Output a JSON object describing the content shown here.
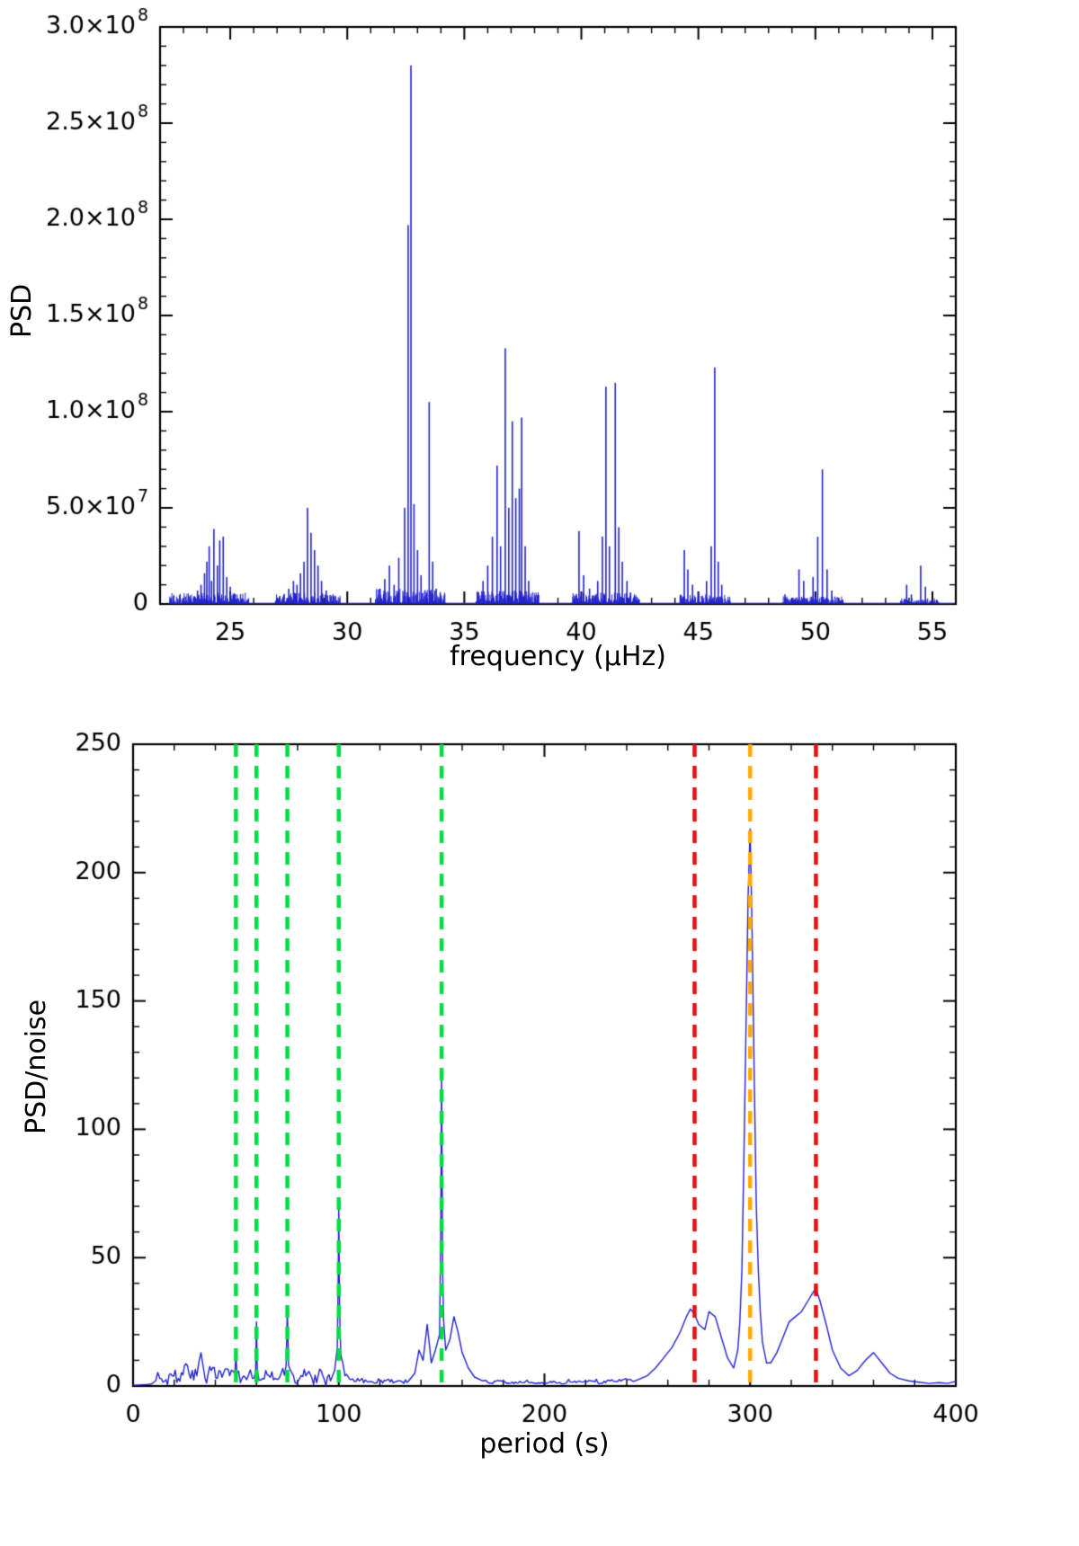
{
  "figure": {
    "background": "#ffffff"
  },
  "chart_data": [
    {
      "id": "psd_vs_frequency",
      "type": "line",
      "title": "",
      "xlabel": "frequency (μHz)",
      "ylabel": "PSD",
      "xlim": [
        22,
        56
      ],
      "ylim": [
        0,
        300000000.0
      ],
      "grid": false,
      "legend": "none",
      "line_color": "#2222cc",
      "xticks": {
        "major": [
          25,
          30,
          35,
          40,
          45,
          50,
          55
        ],
        "labels": [
          "25",
          "30",
          "35",
          "40",
          "45",
          "50",
          "55"
        ],
        "minor_step": 1
      },
      "yticks": {
        "major": [
          0,
          50000000.0,
          100000000.0,
          150000000.0,
          200000000.0,
          250000000.0,
          300000000.0
        ],
        "labels": [
          "0",
          "5.0×10^7",
          "1.0×10^8",
          "1.5×10^8",
          "2.0×10^8",
          "2.5×10^8",
          "3.0×10^8"
        ],
        "minor_step": 10000000.0
      },
      "data_range": [
        22.35,
        55.9
      ],
      "peaks": [
        [
          23.45,
          4000000.0
        ],
        [
          23.6,
          7000000.0
        ],
        [
          23.75,
          10000000.0
        ],
        [
          23.9,
          16000000.0
        ],
        [
          24.0,
          22000000.0
        ],
        [
          24.1,
          30000000.0
        ],
        [
          24.2,
          12000000.0
        ],
        [
          24.3,
          39000000.0
        ],
        [
          24.45,
          20000000.0
        ],
        [
          24.55,
          33000000.0
        ],
        [
          24.7,
          35000000.0
        ],
        [
          24.85,
          14000000.0
        ],
        [
          25.0,
          9000000.0
        ],
        [
          25.2,
          5000000.0
        ],
        [
          25.45,
          3000000.0
        ],
        [
          27.1,
          3000000.0
        ],
        [
          27.3,
          5000000.0
        ],
        [
          27.5,
          8000000.0
        ],
        [
          27.7,
          12000000.0
        ],
        [
          27.85,
          10000000.0
        ],
        [
          28.0,
          16000000.0
        ],
        [
          28.15,
          22000000.0
        ],
        [
          28.3,
          50000000.0
        ],
        [
          28.45,
          37000000.0
        ],
        [
          28.6,
          28000000.0
        ],
        [
          28.75,
          20000000.0
        ],
        [
          28.9,
          12000000.0
        ],
        [
          29.1,
          7000000.0
        ],
        [
          29.3,
          4000000.0
        ],
        [
          31.4,
          8000000.0
        ],
        [
          31.6,
          13000000.0
        ],
        [
          31.8,
          20000000.0
        ],
        [
          32.0,
          10000000.0
        ],
        [
          32.2,
          24000000.0
        ],
        [
          32.45,
          50000000.0
        ],
        [
          32.6,
          197000000.0
        ],
        [
          32.72,
          280000000.0
        ],
        [
          32.85,
          52000000.0
        ],
        [
          33.0,
          28000000.0
        ],
        [
          33.15,
          15000000.0
        ],
        [
          33.5,
          105000000.0
        ],
        [
          33.65,
          22000000.0
        ],
        [
          33.8,
          8000000.0
        ],
        [
          35.6,
          6000000.0
        ],
        [
          35.8,
          12000000.0
        ],
        [
          36.0,
          20000000.0
        ],
        [
          36.2,
          35000000.0
        ],
        [
          36.4,
          72000000.0
        ],
        [
          36.55,
          30000000.0
        ],
        [
          36.75,
          133000000.0
        ],
        [
          36.9,
          50000000.0
        ],
        [
          37.05,
          95000000.0
        ],
        [
          37.2,
          55000000.0
        ],
        [
          37.35,
          60000000.0
        ],
        [
          37.45,
          97000000.0
        ],
        [
          37.6,
          30000000.0
        ],
        [
          37.75,
          12000000.0
        ],
        [
          39.9,
          38000000.0
        ],
        [
          40.1,
          15000000.0
        ],
        [
          40.35,
          8000000.0
        ],
        [
          40.7,
          12000000.0
        ],
        [
          40.9,
          35000000.0
        ],
        [
          41.05,
          113000000.0
        ],
        [
          41.2,
          30000000.0
        ],
        [
          41.45,
          115000000.0
        ],
        [
          41.6,
          40000000.0
        ],
        [
          41.75,
          22000000.0
        ],
        [
          41.95,
          12000000.0
        ],
        [
          42.1,
          6000000.0
        ],
        [
          44.4,
          28000000.0
        ],
        [
          44.55,
          18000000.0
        ],
        [
          44.75,
          10000000.0
        ],
        [
          45.0,
          6000000.0
        ],
        [
          45.35,
          12000000.0
        ],
        [
          45.55,
          30000000.0
        ],
        [
          45.7,
          123000000.0
        ],
        [
          45.85,
          22000000.0
        ],
        [
          46.0,
          10000000.0
        ],
        [
          48.7,
          5000000.0
        ],
        [
          49.3,
          18000000.0
        ],
        [
          49.5,
          12000000.0
        ],
        [
          49.9,
          14000000.0
        ],
        [
          50.1,
          35000000.0
        ],
        [
          50.3,
          70000000.0
        ],
        [
          50.5,
          18000000.0
        ],
        [
          50.7,
          7000000.0
        ],
        [
          53.9,
          10000000.0
        ],
        [
          54.1,
          5000000.0
        ],
        [
          54.5,
          20000000.0
        ],
        [
          54.7,
          9000000.0
        ]
      ],
      "noise_bands": [
        [
          22.4,
          25.8,
          6000000.0
        ],
        [
          26.9,
          29.7,
          6000000.0
        ],
        [
          31.2,
          34.2,
          8000000.0
        ],
        [
          35.5,
          38.2,
          7000000.0
        ],
        [
          39.6,
          42.5,
          6000000.0
        ],
        [
          44.2,
          46.4,
          5000000.0
        ],
        [
          48.6,
          51.2,
          4000000.0
        ],
        [
          53.6,
          55.3,
          3000000.0
        ]
      ]
    },
    {
      "id": "psd_noise_vs_period",
      "type": "line",
      "title": "",
      "xlabel": "period (s)",
      "ylabel": "PSD/noise",
      "xlim": [
        0,
        400
      ],
      "ylim": [
        0,
        250
      ],
      "grid": false,
      "legend": "none",
      "line_color": "#2222cc",
      "xticks": {
        "major": [
          0,
          100,
          200,
          300,
          400
        ],
        "labels": [
          "0",
          "100",
          "200",
          "300",
          "400"
        ],
        "minor_step": 20
      },
      "yticks": {
        "major": [
          0,
          50,
          100,
          150,
          200,
          250
        ],
        "labels": [
          "0",
          "50",
          "100",
          "150",
          "200",
          "250"
        ],
        "minor_step": 10
      },
      "points": [
        [
          0,
          0.3
        ],
        [
          3,
          0.4
        ],
        [
          6,
          0.5
        ],
        [
          9,
          0.8
        ],
        [
          11,
          2
        ],
        [
          13,
          3
        ],
        [
          16,
          2.5
        ],
        [
          19,
          4
        ],
        [
          22,
          3
        ],
        [
          25,
          8
        ],
        [
          28,
          3
        ],
        [
          31,
          4
        ],
        [
          33,
          13
        ],
        [
          35,
          3
        ],
        [
          38,
          6
        ],
        [
          41,
          3
        ],
        [
          44,
          5
        ],
        [
          47,
          4
        ],
        [
          49.5,
          5
        ],
        [
          50,
          12
        ],
        [
          50.5,
          5
        ],
        [
          53,
          3
        ],
        [
          56,
          4
        ],
        [
          58,
          3
        ],
        [
          59.6,
          6
        ],
        [
          60,
          25
        ],
        [
          60.4,
          6
        ],
        [
          63,
          3
        ],
        [
          66,
          4
        ],
        [
          69,
          3
        ],
        [
          72,
          5
        ],
        [
          74.4,
          8
        ],
        [
          75,
          30
        ],
        [
          75.6,
          8
        ],
        [
          78,
          4
        ],
        [
          81,
          3
        ],
        [
          84,
          4
        ],
        [
          87,
          3
        ],
        [
          90,
          4
        ],
        [
          93,
          2.5
        ],
        [
          96,
          2
        ],
        [
          98,
          6
        ],
        [
          99.3,
          15
        ],
        [
          99.7,
          40
        ],
        [
          100,
          70
        ],
        [
          100.4,
          30
        ],
        [
          101,
          12
        ],
        [
          103,
          4
        ],
        [
          106,
          2.5
        ],
        [
          110,
          2
        ],
        [
          115,
          1.8
        ],
        [
          120,
          2.2
        ],
        [
          125,
          1.6
        ],
        [
          130,
          2
        ],
        [
          134,
          2
        ],
        [
          137,
          5
        ],
        [
          139,
          14
        ],
        [
          141,
          10
        ],
        [
          143,
          24
        ],
        [
          145,
          9
        ],
        [
          147,
          14
        ],
        [
          149,
          20
        ],
        [
          149.6,
          60
        ],
        [
          150,
          123
        ],
        [
          150.5,
          45
        ],
        [
          151,
          25
        ],
        [
          152,
          14
        ],
        [
          154,
          18
        ],
        [
          156,
          27
        ],
        [
          158,
          21
        ],
        [
          160,
          13
        ],
        [
          163,
          7
        ],
        [
          166,
          3.5
        ],
        [
          170,
          2
        ],
        [
          174,
          1.2
        ],
        [
          178,
          2
        ],
        [
          183,
          1
        ],
        [
          188,
          1.8
        ],
        [
          193,
          1.2
        ],
        [
          198,
          1
        ],
        [
          203,
          1.8
        ],
        [
          208,
          1
        ],
        [
          214,
          1.5
        ],
        [
          220,
          2
        ],
        [
          226,
          1.2
        ],
        [
          232,
          2
        ],
        [
          238,
          2.5
        ],
        [
          244,
          2
        ],
        [
          250,
          4
        ],
        [
          254,
          7
        ],
        [
          258,
          11
        ],
        [
          262,
          15
        ],
        [
          266,
          21
        ],
        [
          269,
          27
        ],
        [
          271,
          30
        ],
        [
          273,
          28
        ],
        [
          275,
          24
        ],
        [
          278,
          22
        ],
        [
          280,
          29
        ],
        [
          283,
          27
        ],
        [
          286,
          19
        ],
        [
          289,
          11
        ],
        [
          292,
          7
        ],
        [
          294,
          14
        ],
        [
          295,
          25
        ],
        [
          296,
          45
        ],
        [
          297,
          90
        ],
        [
          298,
          140
        ],
        [
          299,
          190
        ],
        [
          300,
          217
        ],
        [
          301,
          175
        ],
        [
          302,
          120
        ],
        [
          303,
          70
        ],
        [
          304,
          45
        ],
        [
          305,
          28
        ],
        [
          306,
          17
        ],
        [
          308,
          9
        ],
        [
          310,
          9
        ],
        [
          313,
          13
        ],
        [
          316,
          19
        ],
        [
          319,
          25
        ],
        [
          322,
          27
        ],
        [
          325,
          29
        ],
        [
          328,
          33
        ],
        [
          331,
          37
        ],
        [
          332,
          38
        ],
        [
          334,
          33
        ],
        [
          337,
          24
        ],
        [
          340,
          14
        ],
        [
          344,
          7
        ],
        [
          348,
          4
        ],
        [
          352,
          6
        ],
        [
          356,
          10
        ],
        [
          360,
          13
        ],
        [
          364,
          9
        ],
        [
          368,
          5
        ],
        [
          372,
          3
        ],
        [
          377,
          2
        ],
        [
          382,
          1.5
        ],
        [
          387,
          1
        ],
        [
          392,
          1.3
        ],
        [
          396,
          1
        ],
        [
          400,
          1.8
        ]
      ],
      "jitter_regions": [
        [
          11,
          96,
          3.0
        ],
        [
          101,
          136,
          1.0
        ],
        [
          168,
          248,
          0.5
        ]
      ],
      "vlines": [
        {
          "x": 50,
          "color": "green"
        },
        {
          "x": 60,
          "color": "green"
        },
        {
          "x": 75,
          "color": "green"
        },
        {
          "x": 100,
          "color": "green"
        },
        {
          "x": 150,
          "color": "green"
        },
        {
          "x": 273,
          "color": "red"
        },
        {
          "x": 300,
          "color": "orange"
        },
        {
          "x": 332,
          "color": "red"
        }
      ],
      "colors": {
        "green": "#00dd44",
        "red": "#e01212",
        "orange": "#ffaa00"
      }
    }
  ]
}
